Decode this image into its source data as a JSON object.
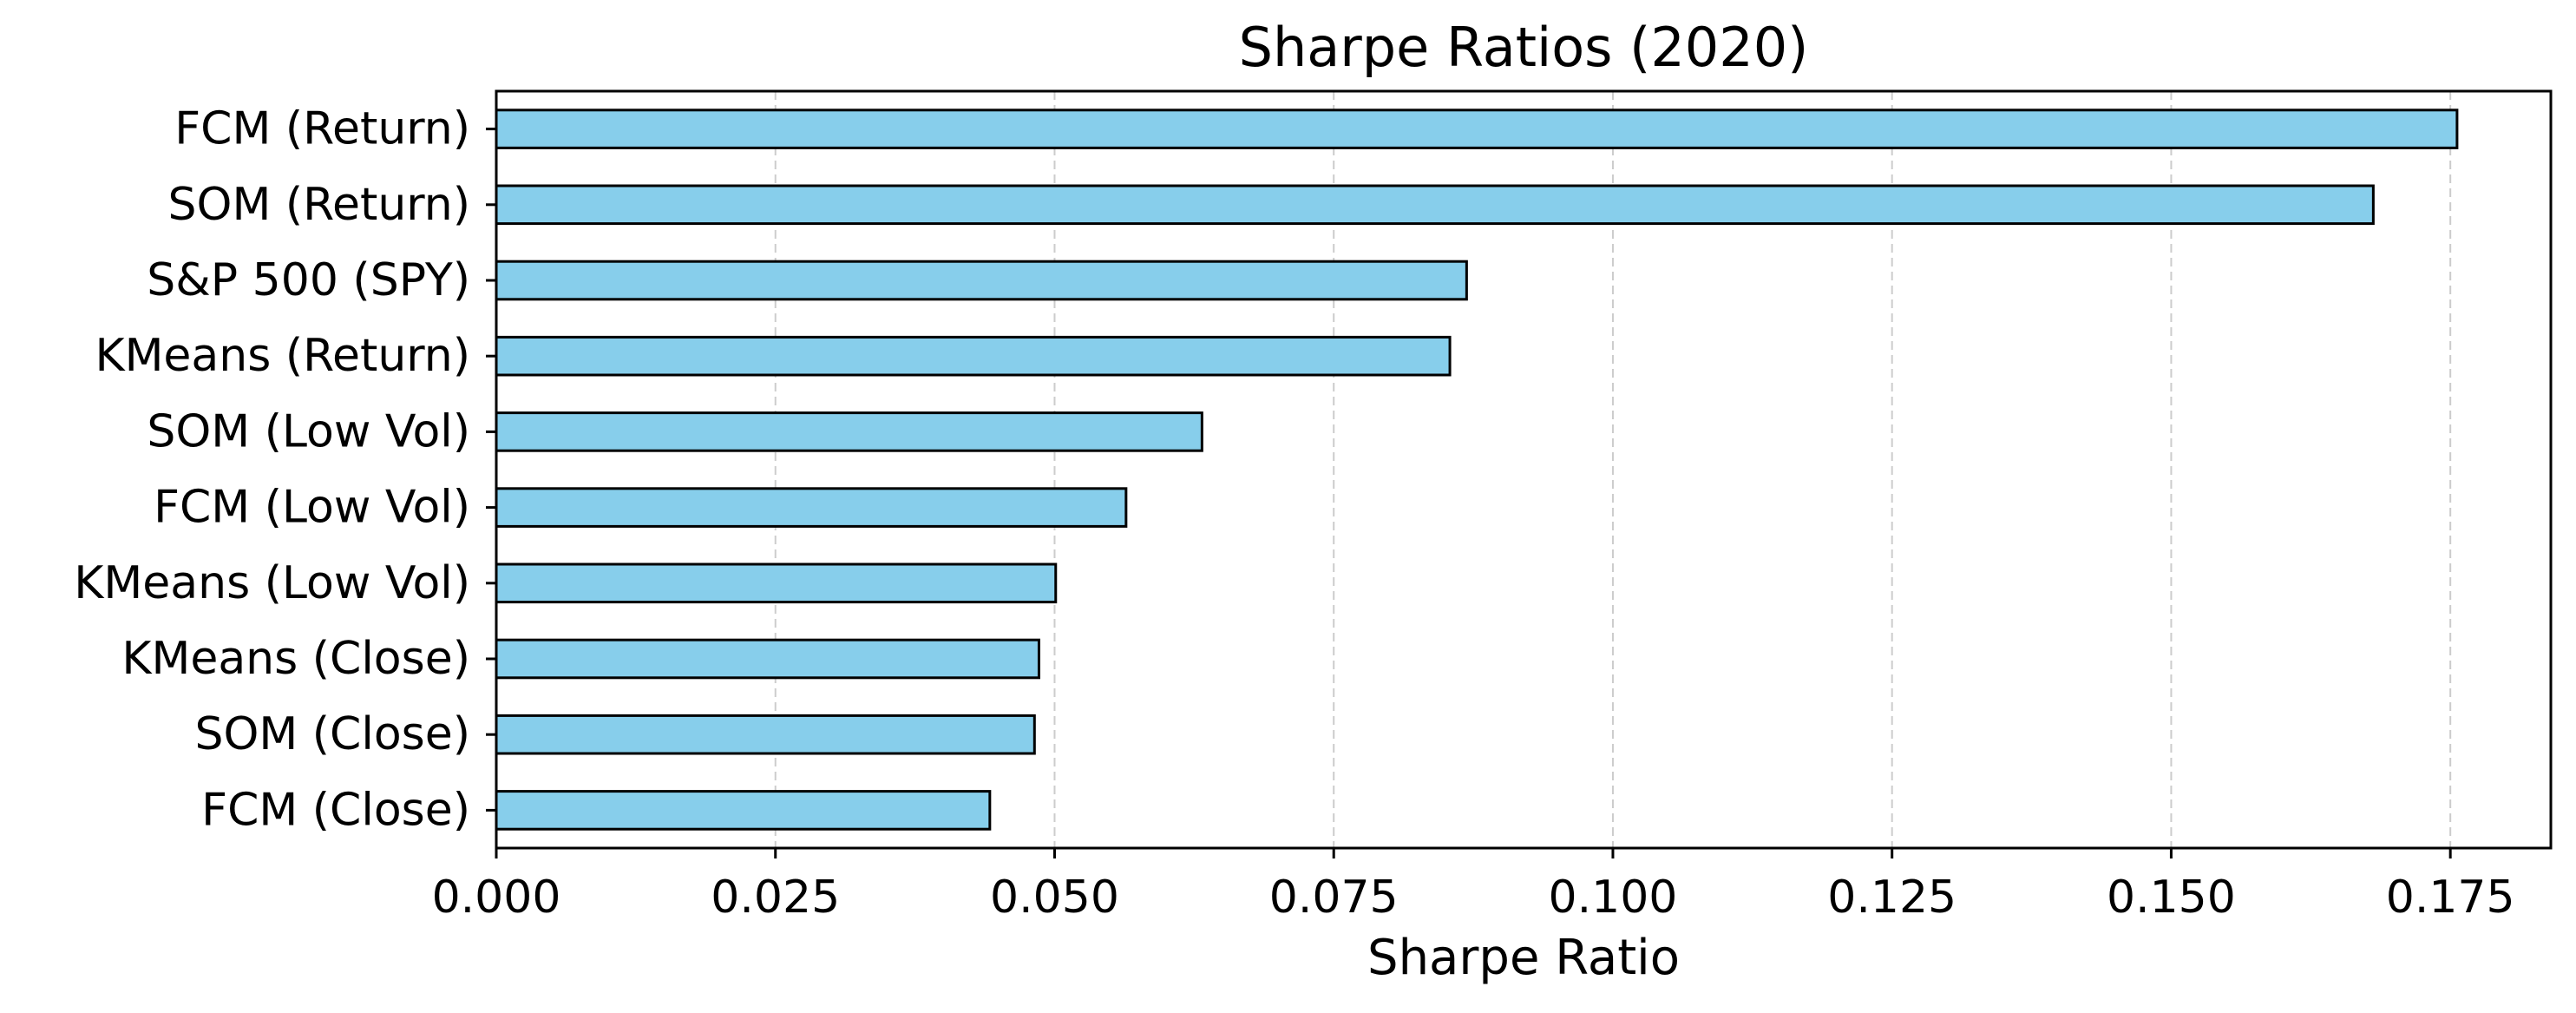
{
  "chart_data": {
    "type": "bar",
    "orientation": "horizontal",
    "title": "Sharpe Ratios (2020)",
    "xlabel": "Sharpe Ratio",
    "ylabel": "",
    "categories": [
      "FCM (Return)",
      "SOM (Return)",
      "S&P 500 (SPY)",
      "KMeans (Return)",
      "SOM (Low Vol)",
      "FCM (Low Vol)",
      "KMeans (Low Vol)",
      "KMeans (Close)",
      "SOM (Close)",
      "FCM (Close)"
    ],
    "values": [
      0.1756,
      0.1681,
      0.0869,
      0.0854,
      0.0632,
      0.0564,
      0.0501,
      0.0486,
      0.0482,
      0.0442
    ],
    "xlim": [
      0,
      0.184
    ],
    "xticks": [
      "0.000",
      "0.025",
      "0.050",
      "0.075",
      "0.100",
      "0.125",
      "0.150",
      "0.175"
    ],
    "grid": "x-axis dashed",
    "legend": "none",
    "colors": {
      "bar_fill": "#87CEEB",
      "bar_edge": "#000000",
      "grid": "#cccccc",
      "axes": "#000000"
    }
  }
}
